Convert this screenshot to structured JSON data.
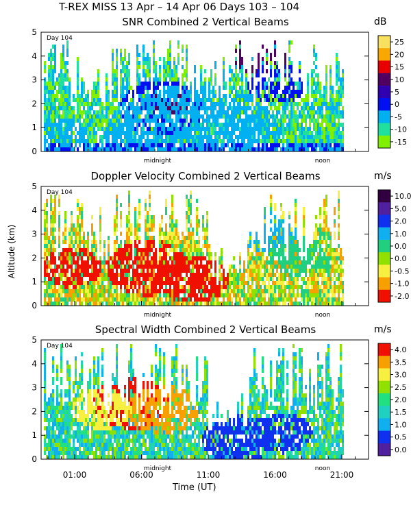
{
  "header": {
    "title": "T-REX MISS   13 Apr – 14 Apr 06 Days 103 – 104"
  },
  "common": {
    "x_axis_label": "Time (UT)",
    "y_axis_label": "Altitude (km)",
    "day_marker": "Day 104",
    "time_ticks": [
      "01:00",
      "06:00",
      "11:00",
      "16:00",
      "21:00"
    ],
    "altitude_ticks": [
      "0",
      "1",
      "2",
      "3",
      "4",
      "5"
    ],
    "annotations": [
      "midnight",
      "noon"
    ]
  },
  "chart_data": [
    {
      "type": "heatmap",
      "title": "SNR Combined 2 Vertical Beams",
      "unit": "dB",
      "colorbar_ticks": [
        "25",
        "20",
        "15",
        "10",
        "5",
        "0",
        "-5",
        "-10",
        "-15"
      ],
      "colors": [
        "#f8e060",
        "#f8a800",
        "#e80000",
        "#500060",
        "#3000b0",
        "#0010f0",
        "#00b0f0",
        "#20e0a0",
        "#80f000"
      ],
      "xlabel": "Time (UT)",
      "ylabel": "Altitude (km)",
      "ylim": [
        0,
        5
      ]
    },
    {
      "type": "heatmap",
      "title": "Doppler Velocity Combined 2 Vertical Beams",
      "unit": "m/s",
      "colorbar_ticks": [
        "10.0",
        "5.0",
        "2.0",
        "1.0",
        "0.0",
        "0.0",
        "-0.5",
        "-1.0",
        "-2.0"
      ],
      "colors": [
        "#300040",
        "#5020a0",
        "#1030f0",
        "#10b0f0",
        "#20d080",
        "#90e000",
        "#f8f040",
        "#f8a000",
        "#f01000"
      ],
      "xlabel": "Time (UT)",
      "ylabel": "Altitude (km)",
      "ylim": [
        0,
        5
      ]
    },
    {
      "type": "heatmap",
      "title": "Spectral Width Combined 2 Vertical Beams",
      "unit": "m/s",
      "colorbar_ticks": [
        "4.0",
        "3.5",
        "3.0",
        "2.5",
        "2.0",
        "1.5",
        "1.0",
        "0.5",
        "0.0"
      ],
      "colors": [
        "#f01000",
        "#f8a000",
        "#f8f040",
        "#90e000",
        "#20e080",
        "#20d0c0",
        "#10b0f0",
        "#1030f0",
        "#5020a0"
      ],
      "xlabel": "Time (UT)",
      "ylabel": "Altitude (km)",
      "ylim": [
        0,
        5
      ]
    }
  ]
}
